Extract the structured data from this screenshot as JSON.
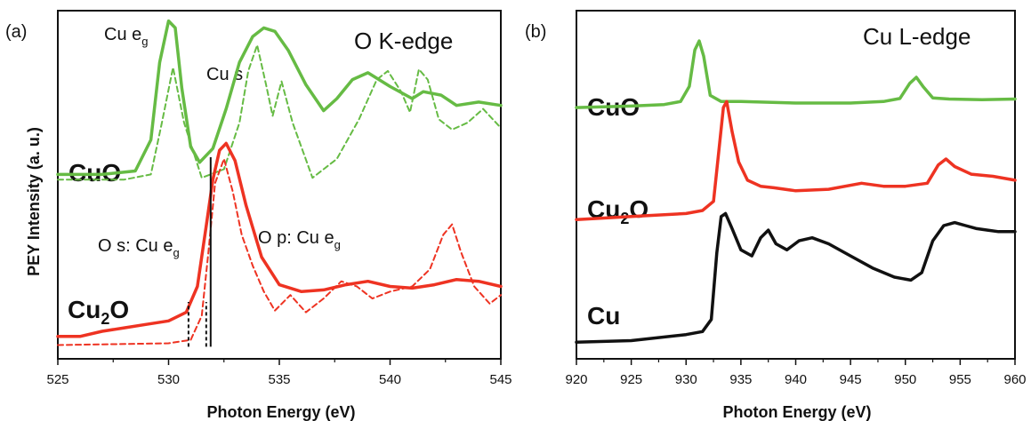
{
  "chart_data": [
    {
      "type": "line",
      "panel_label": "(a)",
      "title": "O K-edge",
      "xlabel": "Photon Energy (eV)",
      "ylabel": "PEY Intensity (a. u.)",
      "xlim": [
        525,
        545
      ],
      "xticks": [
        "525",
        "530",
        "535",
        "540",
        "545"
      ],
      "grid": false,
      "y_units": "arbitrary (stacked offsets)",
      "series": [
        {
          "name": "CuO",
          "style": "solid",
          "color": "#66bb44",
          "x": [
            525,
            527,
            528.5,
            529.2,
            529.6,
            530.0,
            530.3,
            530.6,
            531.0,
            531.4,
            532.0,
            532.6,
            533.2,
            533.8,
            534.3,
            534.8,
            535.4,
            536.2,
            537.0,
            537.6,
            538.3,
            539.0,
            540.0,
            541.0,
            541.5,
            542.3,
            543.0,
            544.0,
            545.0
          ],
          "y": [
            0.1,
            0.1,
            0.12,
            0.3,
            0.75,
            0.99,
            0.95,
            0.6,
            0.26,
            0.17,
            0.25,
            0.48,
            0.75,
            0.9,
            0.95,
            0.93,
            0.82,
            0.62,
            0.47,
            0.54,
            0.65,
            0.69,
            0.61,
            0.54,
            0.58,
            0.56,
            0.5,
            0.52,
            0.5
          ]
        },
        {
          "name": "CuO",
          "style": "dashed",
          "color": "#66bb44",
          "x": [
            525,
            528.0,
            529.2,
            529.7,
            530.2,
            530.7,
            531.5,
            532.5,
            533.2,
            533.6,
            534.0,
            534.4,
            534.7,
            535.1,
            535.6,
            536.5,
            537.6,
            538.6,
            539.4,
            539.9,
            540.5,
            540.9,
            541.3,
            541.7,
            542.2,
            542.8,
            543.5,
            544.2,
            545.0
          ],
          "y": [
            0.07,
            0.07,
            0.1,
            0.4,
            0.72,
            0.4,
            0.08,
            0.13,
            0.4,
            0.7,
            0.85,
            0.62,
            0.44,
            0.64,
            0.4,
            0.08,
            0.19,
            0.42,
            0.65,
            0.7,
            0.58,
            0.46,
            0.71,
            0.65,
            0.42,
            0.36,
            0.4,
            0.48,
            0.37
          ]
        },
        {
          "name": "Cu2O",
          "style": "solid",
          "color": "#ee3322",
          "x": [
            525,
            526.0,
            527.0,
            528.0,
            529.0,
            530.0,
            530.8,
            531.3,
            531.7,
            532.0,
            532.3,
            532.6,
            533.0,
            533.5,
            534.2,
            535.0,
            536.0,
            537.0,
            538.0,
            539.0,
            540.0,
            541.0,
            542.0,
            543.0,
            544.0,
            545.0
          ],
          "y": [
            -0.84,
            -0.84,
            -0.81,
            -0.79,
            -0.77,
            -0.75,
            -0.7,
            -0.55,
            -0.2,
            0.07,
            0.24,
            0.28,
            0.18,
            -0.08,
            -0.38,
            -0.54,
            -0.58,
            -0.57,
            -0.54,
            -0.52,
            -0.55,
            -0.56,
            -0.54,
            -0.51,
            -0.52,
            -0.55
          ]
        },
        {
          "name": "Cu2O",
          "style": "dashed",
          "color": "#ee3322",
          "x": [
            525,
            530.0,
            531.0,
            531.5,
            531.8,
            532.1,
            532.5,
            532.9,
            533.3,
            533.8,
            534.3,
            534.8,
            535.5,
            536.2,
            537.0,
            537.8,
            538.5,
            539.2,
            540.0,
            541.0,
            541.8,
            542.4,
            542.8,
            543.2,
            543.8,
            544.5,
            545.0
          ],
          "y": [
            -0.89,
            -0.88,
            -0.86,
            -0.72,
            -0.35,
            0.05,
            0.19,
            0.0,
            -0.25,
            -0.43,
            -0.58,
            -0.69,
            -0.6,
            -0.7,
            -0.62,
            -0.52,
            -0.55,
            -0.62,
            -0.58,
            -0.55,
            -0.45,
            -0.25,
            -0.19,
            -0.35,
            -0.55,
            -0.65,
            -0.6
          ]
        }
      ],
      "markers": [
        {
          "x": 530.9,
          "style": "dashed",
          "color": "#111111",
          "y_from": -0.9,
          "y_to": -0.64
        },
        {
          "x": 531.7,
          "style": "dashed",
          "color": "#111111",
          "y_from": -0.9,
          "y_to": -0.64
        },
        {
          "x": 531.9,
          "style": "solid",
          "color": "#111111",
          "y_from": -0.9,
          "y_to": 0.2
        }
      ],
      "series_labels": [
        "CuO",
        "Cu",
        "2",
        "O"
      ],
      "annotations": [
        {
          "text": "Cu e",
          "sub": "g"
        },
        {
          "text": "Cu s",
          "sub": ""
        },
        {
          "text": "O s: Cu e",
          "sub": "g"
        },
        {
          "text": "O p: Cu e",
          "sub": "g"
        }
      ]
    },
    {
      "type": "line",
      "panel_label": "(b)",
      "title": "Cu L-edge",
      "xlabel": "Photon Energy (eV)",
      "ylabel": "",
      "xlim": [
        920,
        960
      ],
      "xticks": [
        "920",
        "925",
        "930",
        "935",
        "940",
        "945",
        "950",
        "955",
        "960"
      ],
      "grid": false,
      "y_units": "arbitrary (stacked offsets)",
      "series": [
        {
          "name": "CuO",
          "color": "#66bb44",
          "x": [
            920,
            925,
            928,
            929.5,
            930.3,
            930.8,
            931.2,
            931.6,
            932.2,
            933.2,
            935,
            940,
            945,
            948,
            949.5,
            950.4,
            951.0,
            951.6,
            952.5,
            954,
            957,
            960
          ],
          "y": [
            0.78,
            0.785,
            0.79,
            0.8,
            0.85,
            0.97,
            1.0,
            0.95,
            0.82,
            0.8,
            0.8,
            0.795,
            0.795,
            0.8,
            0.81,
            0.86,
            0.88,
            0.85,
            0.812,
            0.808,
            0.806,
            0.808
          ]
        },
        {
          "name": "Cu2O",
          "color": "#ee3322",
          "x": [
            920,
            925,
            930,
            931.5,
            932.5,
            933.0,
            933.4,
            933.7,
            934.2,
            934.8,
            935.6,
            936.8,
            938.0,
            940,
            943,
            946,
            948,
            950,
            952,
            953.0,
            953.7,
            954.5,
            956,
            958,
            960
          ],
          "y": [
            0.41,
            0.42,
            0.43,
            0.44,
            0.47,
            0.64,
            0.78,
            0.8,
            0.7,
            0.6,
            0.54,
            0.52,
            0.515,
            0.505,
            0.51,
            0.53,
            0.52,
            0.52,
            0.53,
            0.59,
            0.61,
            0.585,
            0.56,
            0.553,
            0.54
          ]
        },
        {
          "name": "Cu",
          "color": "#111111",
          "x": [
            920,
            925,
            930,
            931.5,
            932.3,
            932.8,
            933.2,
            933.6,
            934.2,
            935.0,
            936.0,
            936.8,
            937.5,
            938.2,
            939.2,
            940.3,
            941.5,
            943,
            945,
            947,
            949,
            950.5,
            951.5,
            952.5,
            953.5,
            954.5,
            955.5,
            956.5,
            957.5,
            958.5,
            960
          ],
          "y": [
            0.005,
            0.01,
            0.03,
            0.04,
            0.08,
            0.3,
            0.42,
            0.43,
            0.38,
            0.31,
            0.29,
            0.35,
            0.375,
            0.33,
            0.31,
            0.34,
            0.35,
            0.33,
            0.29,
            0.25,
            0.22,
            0.21,
            0.235,
            0.34,
            0.39,
            0.4,
            0.39,
            0.38,
            0.375,
            0.37,
            0.37
          ]
        }
      ],
      "series_labels": [
        "CuO",
        "Cu",
        "2",
        "O",
        "Cu"
      ]
    }
  ]
}
